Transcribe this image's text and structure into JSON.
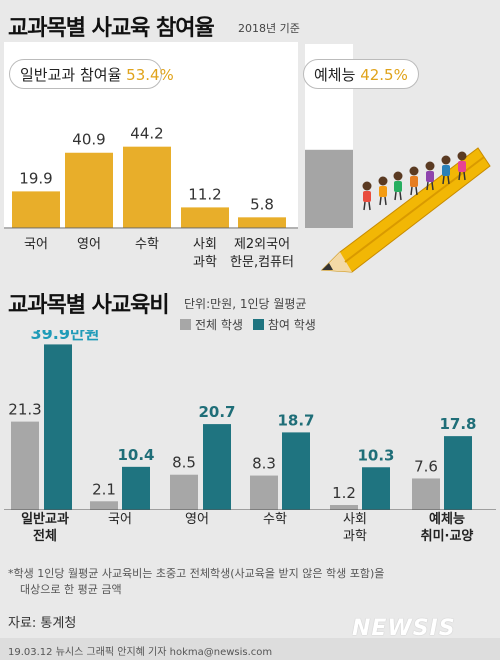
{
  "top": {
    "title": "교과목별 사교육 참여율",
    "basis": "2018년 기준",
    "pill_general_label": "일반교과 참여율",
    "pill_general_pct": "53.4%",
    "pill_arts_label": "예체능",
    "pill_arts_pct": "42.5%"
  },
  "bottom": {
    "title": "교과목별 사교육비",
    "unit": "단위:만원, 1인당 월평균",
    "legend_all": "전체 학생",
    "legend_part": "참여 학생",
    "highlight": "39.9만원",
    "cat_line1": [
      "일반교과",
      "국어",
      "영어",
      "수학",
      "사회",
      "예체능"
    ],
    "cat_line2": [
      "전체",
      "",
      "",
      "",
      "과학",
      "취미·교양"
    ]
  },
  "note_line1": "*학생 1인당 월평균 사교육비는 초중고 전체학생(사교육을 받지 않은 학생 포함)을",
  "note_line2": "대상으로 한 평균 금액",
  "source": "자료: 통계청",
  "credit": "19.03.12  뉴시스 그래픽  안지혜 기자  hokma@newsis.com",
  "logo": "NEWSIS",
  "colors": {
    "gold": "#e8ae2a",
    "teal": "#1f7480",
    "gray": "#a7a7a7",
    "arts": "#a5a5a5"
  },
  "chart_data": [
    {
      "type": "bar",
      "title": "교과목별 사교육 참여율",
      "categories": [
        "국어",
        "영어",
        "수학",
        "사회 과학",
        "제2외국어 한문,컴퓨터"
      ],
      "values": [
        19.9,
        40.9,
        44.2,
        11.2,
        5.8
      ],
      "value_labels": [
        "19.9",
        "40.9",
        "44.2",
        "11.2",
        "5.8"
      ],
      "ylim": [
        0,
        100
      ],
      "arts_value": 42.5
    },
    {
      "type": "bar",
      "title": "교과목별 사교육비",
      "categories": [
        "일반교과 전체",
        "국어",
        "영어",
        "수학",
        "사회 과학",
        "예체능 취미·교양"
      ],
      "series": [
        {
          "name": "전체 학생",
          "values": [
            21.3,
            2.1,
            8.5,
            8.3,
            1.2,
            7.6
          ],
          "labels": [
            "21.3",
            "2.1",
            "8.5",
            "8.3",
            "1.2",
            "7.6"
          ]
        },
        {
          "name": "참여 학생",
          "values": [
            39.9,
            10.4,
            20.7,
            18.7,
            10.3,
            17.8
          ],
          "labels": [
            "",
            "10.4",
            "20.7",
            "18.7",
            "10.3",
            "17.8"
          ]
        }
      ],
      "ylim": [
        0,
        40
      ]
    }
  ]
}
